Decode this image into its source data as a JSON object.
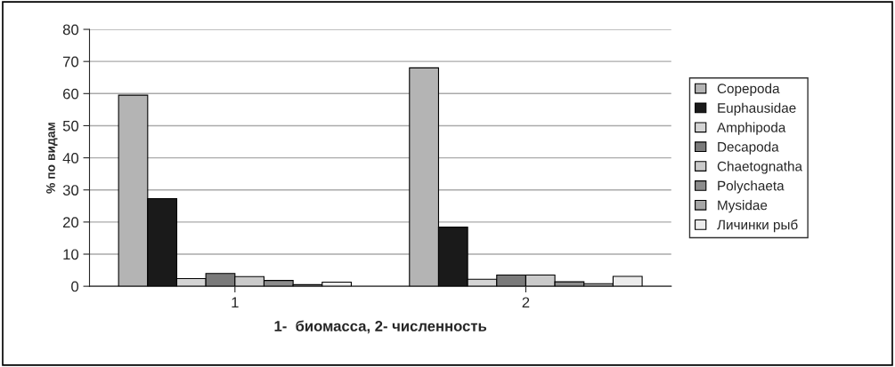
{
  "chart_data": {
    "type": "bar",
    "xlabel": "1-  биомасса, 2- численность",
    "ylabel": "% по видам",
    "categories": [
      "1",
      "2"
    ],
    "series": [
      {
        "name": "Copepoda",
        "color": "#b4b4b4",
        "values": [
          59.5,
          68
        ]
      },
      {
        "name": "Euphausidae",
        "color": "#1a1a1a",
        "values": [
          27.3,
          18.4
        ]
      },
      {
        "name": "Amphipoda",
        "color": "#d4d4d4",
        "values": [
          2.4,
          2.2
        ]
      },
      {
        "name": "Decapoda",
        "color": "#7a7a7a",
        "values": [
          4.0,
          3.5
        ]
      },
      {
        "name": "Chaetognatha",
        "color": "#cacaca",
        "values": [
          3.0,
          3.5
        ]
      },
      {
        "name": "Polychaeta",
        "color": "#8c8c8c",
        "values": [
          1.8,
          1.4
        ]
      },
      {
        "name": "Mysidae",
        "color": "#a6a6a6",
        "values": [
          0.5,
          0.8
        ]
      },
      {
        "name": "Личинки рыб",
        "color": "#ececec",
        "values": [
          1.3,
          3.1
        ]
      }
    ],
    "ylim": [
      0,
      80
    ],
    "yticks": [
      0,
      10,
      20,
      30,
      40,
      50,
      60,
      70,
      80
    ],
    "grid": "y",
    "legend": "right"
  }
}
